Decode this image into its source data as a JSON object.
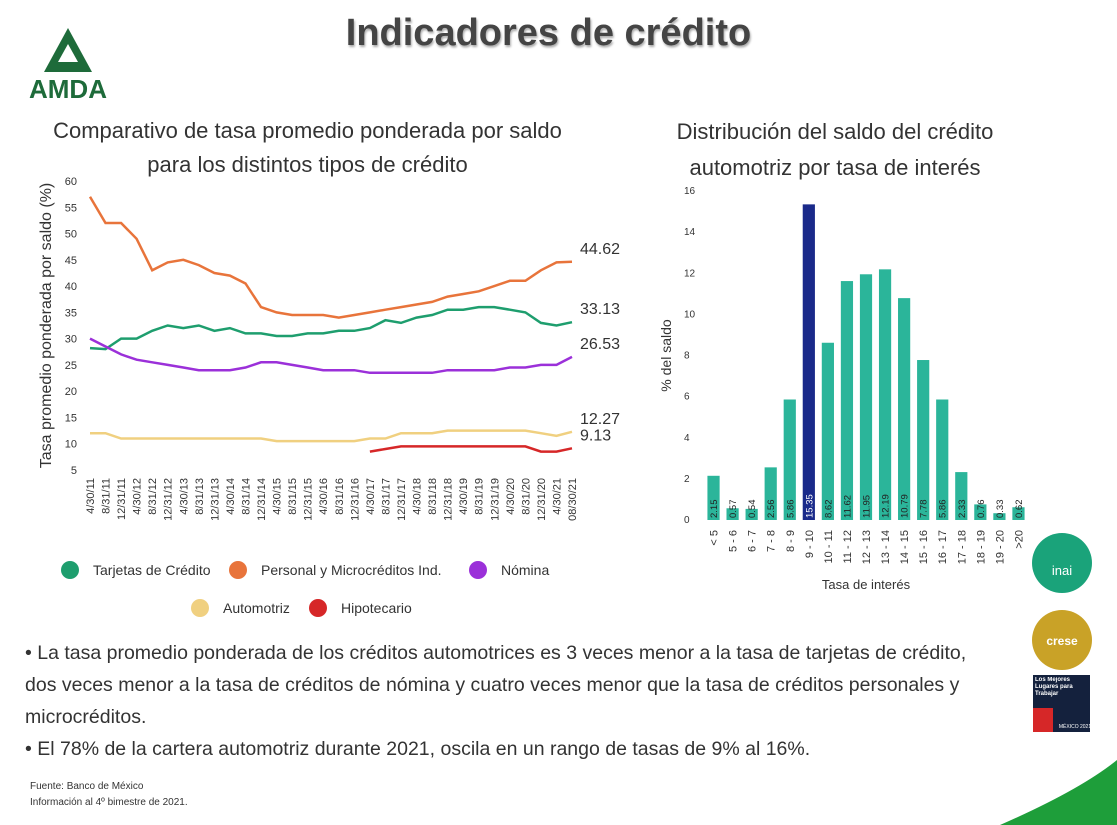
{
  "header": {
    "title": "Indicadores de crédito",
    "logo": "AMDA"
  },
  "chart_data": [
    {
      "type": "line",
      "title": "Comparativo de tasa promedio ponderada por saldo para los distintos tipos de crédito",
      "ylabel": "Tasa promedio ponderada por saldo (%)",
      "categories": [
        "4/30/11",
        "8/31/11",
        "12/31/11",
        "4/30/12",
        "8/31/12",
        "12/31/12",
        "4/30/13",
        "8/31/13",
        "12/31/13",
        "4/30/14",
        "8/31/14",
        "12/31/14",
        "4/30/15",
        "8/31/15",
        "12/31/15",
        "4/30/16",
        "8/31/16",
        "12/31/16",
        "4/30/17",
        "8/31/17",
        "12/31/17",
        "4/30/18",
        "8/31/18",
        "12/31/18",
        "4/30/19",
        "8/31/19",
        "12/31/19",
        "4/30/20",
        "8/31/20",
        "12/31/20",
        "4/30/21",
        "08/30/21"
      ],
      "series": [
        {
          "name": "Tarjetas de Crédito",
          "color": "#1e9e6e",
          "values": [
            28.2,
            28,
            30,
            30,
            31.5,
            32.5,
            32,
            32.5,
            31.5,
            32,
            31,
            31,
            30.5,
            30.5,
            31,
            31,
            31.5,
            31.5,
            32,
            33.5,
            33,
            34,
            34.5,
            35.5,
            35.5,
            36,
            36,
            35.5,
            35,
            33,
            32.5,
            33.13
          ]
        },
        {
          "name": "Personal y Microcréditos Ind.",
          "color": "#e8743b",
          "values": [
            57,
            52,
            52,
            49,
            43,
            44.5,
            45,
            44,
            42.5,
            42,
            40.5,
            36,
            35,
            34.5,
            34.5,
            34.5,
            34,
            34.5,
            35,
            35.5,
            36,
            36.5,
            37,
            38,
            38.5,
            39,
            40,
            41,
            41,
            43,
            44.5,
            44.62
          ]
        },
        {
          "name": "Nómina",
          "color": "#9b30d9",
          "values": [
            30,
            28.5,
            27,
            26,
            25.5,
            25,
            24.5,
            24,
            24,
            24,
            24.5,
            25.5,
            25.5,
            25,
            24.5,
            24,
            24,
            24,
            23.5,
            23.5,
            23.5,
            23.5,
            23.5,
            24,
            24,
            24,
            24,
            24.5,
            24.5,
            25,
            25,
            26.53
          ]
        },
        {
          "name": "Automotriz",
          "color": "#f0d080",
          "values": [
            12,
            12,
            11,
            11,
            11,
            11,
            11,
            11,
            11,
            11,
            11,
            11,
            10.5,
            10.5,
            10.5,
            10.5,
            10.5,
            10.5,
            11,
            11,
            12,
            12,
            12,
            12.5,
            12.5,
            12.5,
            12.5,
            12.5,
            12.5,
            12,
            11.5,
            12.27
          ]
        },
        {
          "name": "Hipotecario",
          "color": "#d62728",
          "values": [
            null,
            null,
            null,
            null,
            null,
            null,
            null,
            null,
            null,
            null,
            null,
            null,
            null,
            null,
            null,
            null,
            null,
            null,
            8.5,
            9,
            9.5,
            9.5,
            9.5,
            9.5,
            9.5,
            9.5,
            9.5,
            9.5,
            9.5,
            8.5,
            8.5,
            9.13
          ]
        }
      ],
      "ylim": [
        5,
        60
      ],
      "yticks": [
        5,
        10,
        15,
        20,
        25,
        30,
        35,
        40,
        45,
        50,
        55,
        60
      ],
      "grid": false
    },
    {
      "type": "bar",
      "title": "Distribución del saldo del crédito automotriz por tasa de interés",
      "xlabel": "Tasa de interés",
      "ylabel": "% del saldo",
      "categories": [
        "< 5",
        "5 - 6",
        "6 - 7",
        "7 - 8",
        "8 - 9",
        "9 - 10",
        "10 - 11",
        "11 - 12",
        "12 - 13",
        "13 - 14",
        "14 - 15",
        "15 - 16",
        "16 - 17",
        "17 - 18",
        "18 - 19",
        "19 - 20",
        ">20"
      ],
      "values": [
        2.15,
        0.57,
        0.54,
        2.56,
        5.86,
        15.35,
        8.62,
        11.62,
        11.95,
        12.19,
        10.79,
        7.78,
        5.86,
        2.33,
        0.76,
        0.33,
        0.62
      ],
      "colors": [
        "#2bb59a",
        "#2bb59a",
        "#2bb59a",
        "#2bb59a",
        "#2bb59a",
        "#1a2a8a",
        "#2bb59a",
        "#2bb59a",
        "#2bb59a",
        "#2bb59a",
        "#2bb59a",
        "#2bb59a",
        "#2bb59a",
        "#2bb59a",
        "#2bb59a",
        "#2bb59a",
        "#2bb59a"
      ],
      "ylim": [
        0,
        16
      ],
      "yticks": [
        0,
        2,
        4,
        6,
        8,
        10,
        12,
        14,
        16
      ],
      "grid": false
    }
  ],
  "bullets": [
    "• La tasa promedio ponderada de los créditos automotrices es 3 veces menor a la tasa de tarjetas de crédito, dos veces menor a la tasa de créditos de nómina y cuatro veces menor que la tasa de créditos personales y microcréditos.",
    "• El 78% de la cartera automotriz durante 2021, oscila en un rango de tasas de 9% al 16%."
  ],
  "footer": [
    "Fuente: Banco de México",
    "Información al 4º bimestre de 2021."
  ],
  "badges": [
    "inai",
    "crese",
    "Los Mejores Lugares para Trabajar",
    "MÉXICO 2021"
  ]
}
